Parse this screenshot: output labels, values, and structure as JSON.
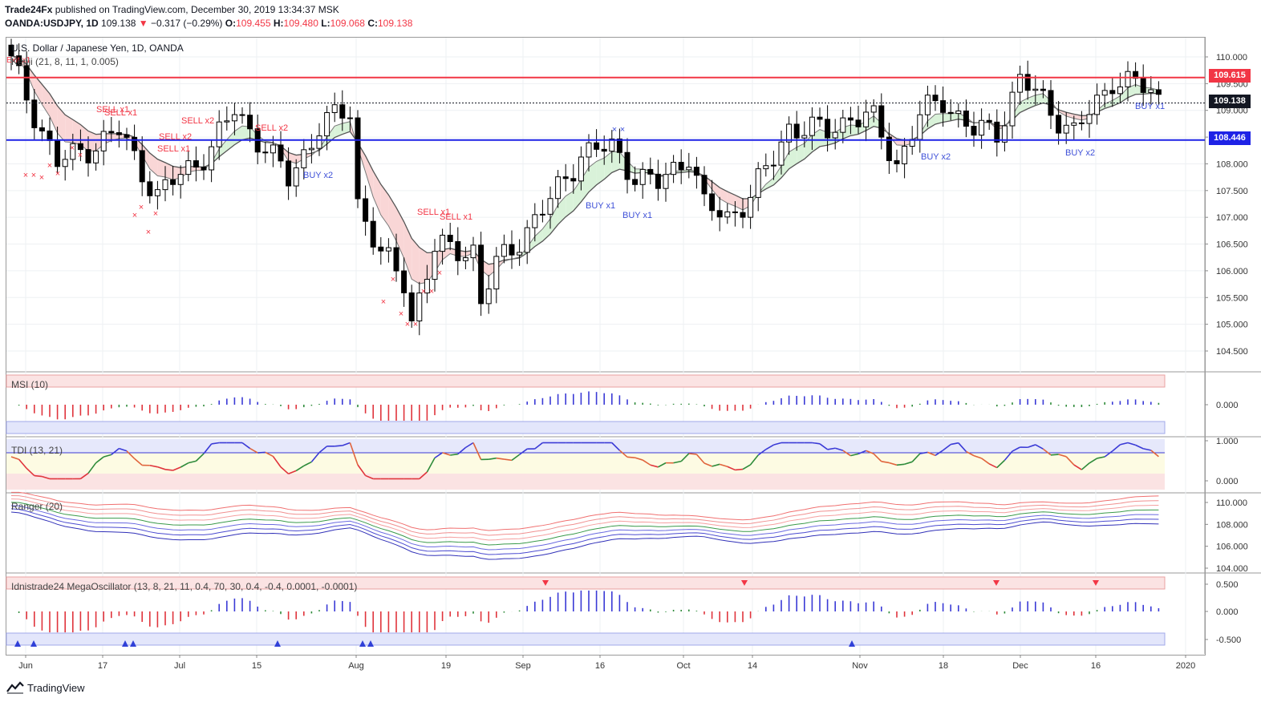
{
  "header": {
    "publisher": "Trade24Fx",
    "published_text": "published on TradingView.com, December 30, 2019 13:34:37 MSK",
    "symbol_code": "OANDA:USDJPY, 1D",
    "last": "109.138",
    "change": "−0.317 (−0.29%)",
    "o_label": "O:",
    "o_value": "109.455",
    "h_label": "H:",
    "h_value": "109.480",
    "l_label": "L:",
    "l_value": "109.068",
    "c_label": "C:",
    "c_value": "109.138"
  },
  "chart": {
    "title": "U.S. Dollar / Japanese Yen, 1D, OANDA",
    "kenji_label": "Kenji (21, 8, 11, 1, 0.005)",
    "exit_label": "Exit x1",
    "resistance": "109.615",
    "current": "109.138",
    "support": "108.446",
    "price_axis": [
      "110.000",
      "109.500",
      "109.000",
      "108.500",
      "108.000",
      "107.500",
      "107.000",
      "106.500",
      "106.000",
      "105.500",
      "105.000",
      "104.500"
    ],
    "signals": [
      {
        "text": "SELL x1",
        "color": "#f23645"
      },
      {
        "text": "SELL x1",
        "color": "#f23645"
      },
      {
        "text": "SELL x2",
        "color": "#f23645"
      },
      {
        "text": "SELL x2",
        "color": "#f23645"
      },
      {
        "text": "SELL x1",
        "color": "#f23645"
      },
      {
        "text": "SELL x2",
        "color": "#f23645"
      },
      {
        "text": "SELL x1",
        "color": "#f23645"
      },
      {
        "text": "SELL x1",
        "color": "#f23645"
      },
      {
        "text": "BUY x2",
        "color": "#3f51d8"
      },
      {
        "text": "BUY x1",
        "color": "#3f51d8"
      },
      {
        "text": "BUY x1",
        "color": "#3f51d8"
      },
      {
        "text": "BUY x2",
        "color": "#3f51d8"
      },
      {
        "text": "BUY x2",
        "color": "#3f51d8"
      },
      {
        "text": "BUY x1",
        "color": "#3f51d8"
      }
    ]
  },
  "indicators": {
    "msi": {
      "label": "MSI (10)",
      "axis": [
        "0.000"
      ]
    },
    "tdi": {
      "label": "TDI (13, 21)",
      "axis": [
        "1.000",
        "0.000"
      ]
    },
    "ranger": {
      "label": "Ranger (20)",
      "axis": [
        "110.000",
        "108.000",
        "106.000",
        "104.000"
      ]
    },
    "mega": {
      "label": "Idnistrade24 MegaOscillator (13, 8, 21, 11, 0.4, 70, 30, 0.4, -0.4, 0.0001, -0.0001)",
      "axis": [
        "0.500",
        "0.000",
        "-0.500"
      ]
    }
  },
  "time_axis": [
    "Jun",
    "17",
    "Jul",
    "15",
    "Aug",
    "19",
    "Sep",
    "16",
    "Oct",
    "14",
    "Nov",
    "18",
    "Dec",
    "16",
    "2020"
  ],
  "footer": {
    "brand": "TradingView"
  },
  "colors": {
    "bull": "#ffffff",
    "bear": "#000000",
    "resistance": "#f23645",
    "support": "#1e22e6",
    "sell": "#f23645",
    "buy": "#3f51d8"
  }
}
